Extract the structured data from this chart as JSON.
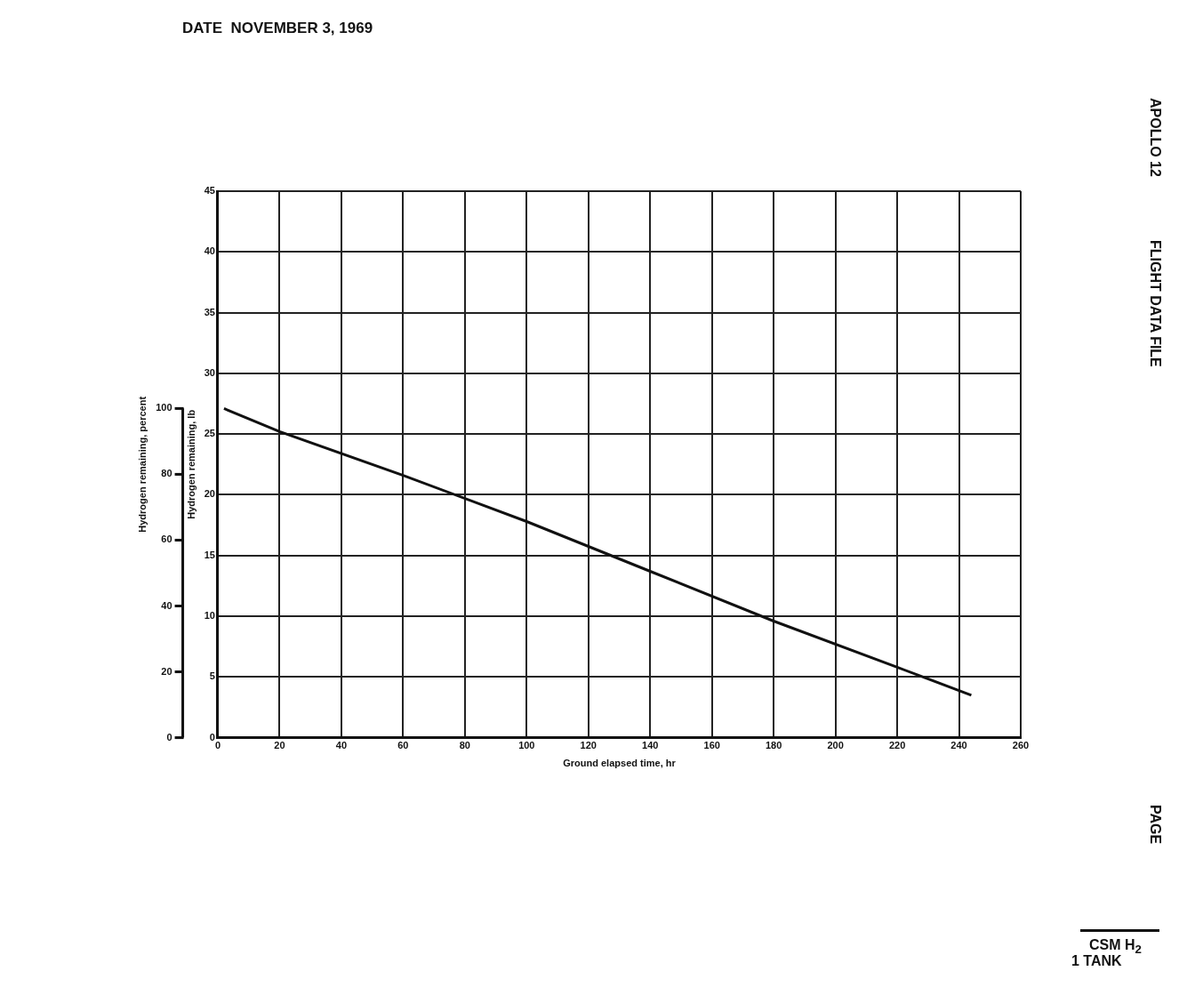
{
  "chart_data": {
    "type": "line",
    "xlabel": "Ground elapsed time, hr",
    "ylabel": "Hydrogen remaining, lb",
    "y2label": "Hydrogen remaining, percent",
    "annotations": [
      "DATE  NOVEMBER 3, 1969",
      "APOLLO 12",
      "FLIGHT DATA FILE",
      "PAGE",
      "CSM H$_{2}$",
      "1 TANK"
    ],
    "x": [
      2,
      20,
      60,
      100,
      140,
      180,
      220,
      244
    ],
    "series": [
      {
        "color": "#111111",
        "values": [
          27.1,
          25.2,
          21.6,
          17.8,
          13.7,
          9.6,
          5.8,
          3.5
        ]
      }
    ],
    "xlim": [
      0,
      260
    ],
    "xticks": [
      0,
      20,
      40,
      60,
      80,
      100,
      120,
      140,
      160,
      180,
      200,
      220,
      240,
      260
    ],
    "ylim": [
      0,
      45
    ],
    "yticks": [
      0,
      5,
      10,
      15,
      20,
      25,
      30,
      35,
      40,
      45
    ],
    "y2lim": [
      0,
      166
    ],
    "y2ticks": [
      0,
      20,
      40,
      60,
      80,
      100
    ],
    "grid": true,
    "marker": "none",
    "line_style": "solid",
    "legend": false
  }
}
